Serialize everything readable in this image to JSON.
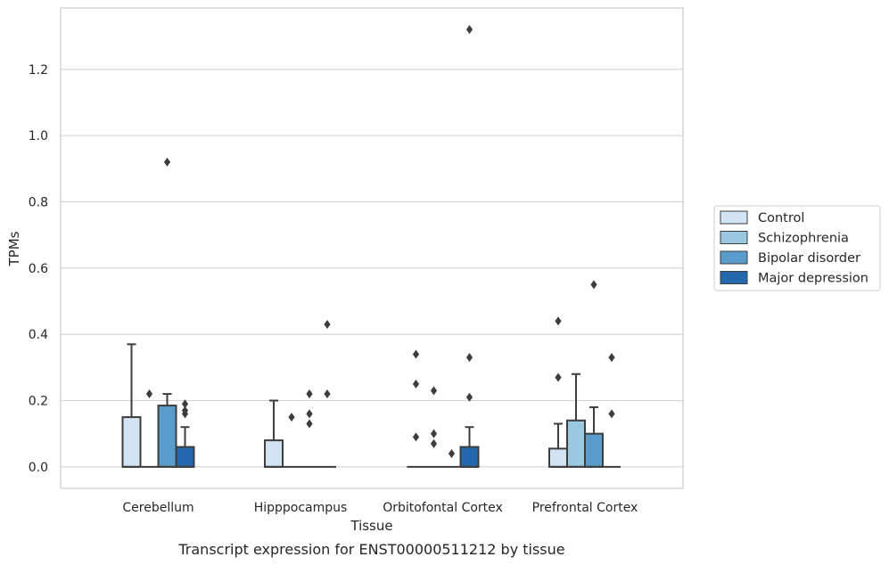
{
  "caption": "Transcript expression for ENST00000511212 by tissue",
  "chart_data": {
    "type": "box",
    "title": "",
    "xlabel": "Tissue",
    "ylabel": "TPMs",
    "categories": [
      "Cerebellum",
      "Hipppocampus",
      "Orbitofontal Cortex",
      "Prefrontal Cortex"
    ],
    "ylim": [
      -0.065,
      1.385
    ],
    "yticks": [
      0.0,
      0.2,
      0.4,
      0.6,
      0.8,
      1.0,
      1.2
    ],
    "yticklabels": [
      "0.0",
      "0.2",
      "0.4",
      "0.6",
      "0.8",
      "1.0",
      "1.2"
    ],
    "grid": true,
    "legend_position": "right",
    "series": [
      {
        "name": "Control",
        "color": "#d2e3f3",
        "boxes": [
          {
            "q1": 0.0,
            "median": 0.0,
            "q3": 0.15,
            "whisker_low": 0.0,
            "whisker_high": 0.37,
            "outliers": []
          },
          {
            "q1": 0.0,
            "median": 0.0,
            "q3": 0.08,
            "whisker_low": 0.0,
            "whisker_high": 0.2,
            "outliers": []
          },
          {
            "q1": 0.0,
            "median": 0.0,
            "q3": 0.0,
            "whisker_low": 0.0,
            "whisker_high": 0.0,
            "outliers": [
              0.09,
              0.25,
              0.34
            ]
          },
          {
            "q1": 0.0,
            "median": 0.0,
            "q3": 0.055,
            "whisker_low": 0.0,
            "whisker_high": 0.13,
            "outliers": [
              0.27,
              0.44
            ]
          }
        ]
      },
      {
        "name": "Schizophrenia",
        "color": "#9ac8e0",
        "boxes": [
          {
            "q1": 0.0,
            "median": 0.0,
            "q3": 0.0,
            "whisker_low": 0.0,
            "whisker_high": 0.0,
            "outliers": [
              0.22
            ]
          },
          {
            "q1": 0.0,
            "median": 0.0,
            "q3": 0.0,
            "whisker_low": 0.0,
            "whisker_high": 0.0,
            "outliers": [
              0.15
            ]
          },
          {
            "q1": 0.0,
            "median": 0.0,
            "q3": 0.0,
            "whisker_low": 0.0,
            "whisker_high": 0.0,
            "outliers": [
              0.07,
              0.1,
              0.23
            ]
          },
          {
            "q1": 0.0,
            "median": 0.0,
            "q3": 0.14,
            "whisker_low": 0.0,
            "whisker_high": 0.28,
            "outliers": []
          }
        ]
      },
      {
        "name": "Bipolar disorder",
        "color": "#5a9dcd",
        "boxes": [
          {
            "q1": 0.0,
            "median": 0.0,
            "q3": 0.185,
            "whisker_low": 0.0,
            "whisker_high": 0.22,
            "outliers": [
              0.92
            ]
          },
          {
            "q1": 0.0,
            "median": 0.0,
            "q3": 0.0,
            "whisker_low": 0.0,
            "whisker_high": 0.0,
            "outliers": [
              0.13,
              0.16,
              0.22
            ]
          },
          {
            "q1": 0.0,
            "median": 0.0,
            "q3": 0.0,
            "whisker_low": 0.0,
            "whisker_high": 0.0,
            "outliers": [
              0.04
            ]
          },
          {
            "q1": 0.0,
            "median": 0.0,
            "q3": 0.1,
            "whisker_low": 0.0,
            "whisker_high": 0.18,
            "outliers": [
              0.55
            ]
          }
        ]
      },
      {
        "name": "Major depression",
        "color": "#2468ad",
        "boxes": [
          {
            "q1": 0.0,
            "median": 0.0,
            "q3": 0.06,
            "whisker_low": 0.0,
            "whisker_high": 0.12,
            "outliers": [
              0.16,
              0.17,
              0.19
            ]
          },
          {
            "q1": 0.0,
            "median": 0.0,
            "q3": 0.0,
            "whisker_low": 0.0,
            "whisker_high": 0.0,
            "outliers": [
              0.22,
              0.43
            ]
          },
          {
            "q1": 0.0,
            "median": 0.0,
            "q3": 0.06,
            "whisker_low": 0.0,
            "whisker_high": 0.12,
            "outliers": [
              0.21,
              0.33,
              1.32
            ]
          },
          {
            "q1": 0.0,
            "median": 0.0,
            "q3": 0.0,
            "whisker_low": 0.0,
            "whisker_high": 0.0,
            "outliers": [
              0.16,
              0.33
            ]
          }
        ]
      }
    ]
  }
}
